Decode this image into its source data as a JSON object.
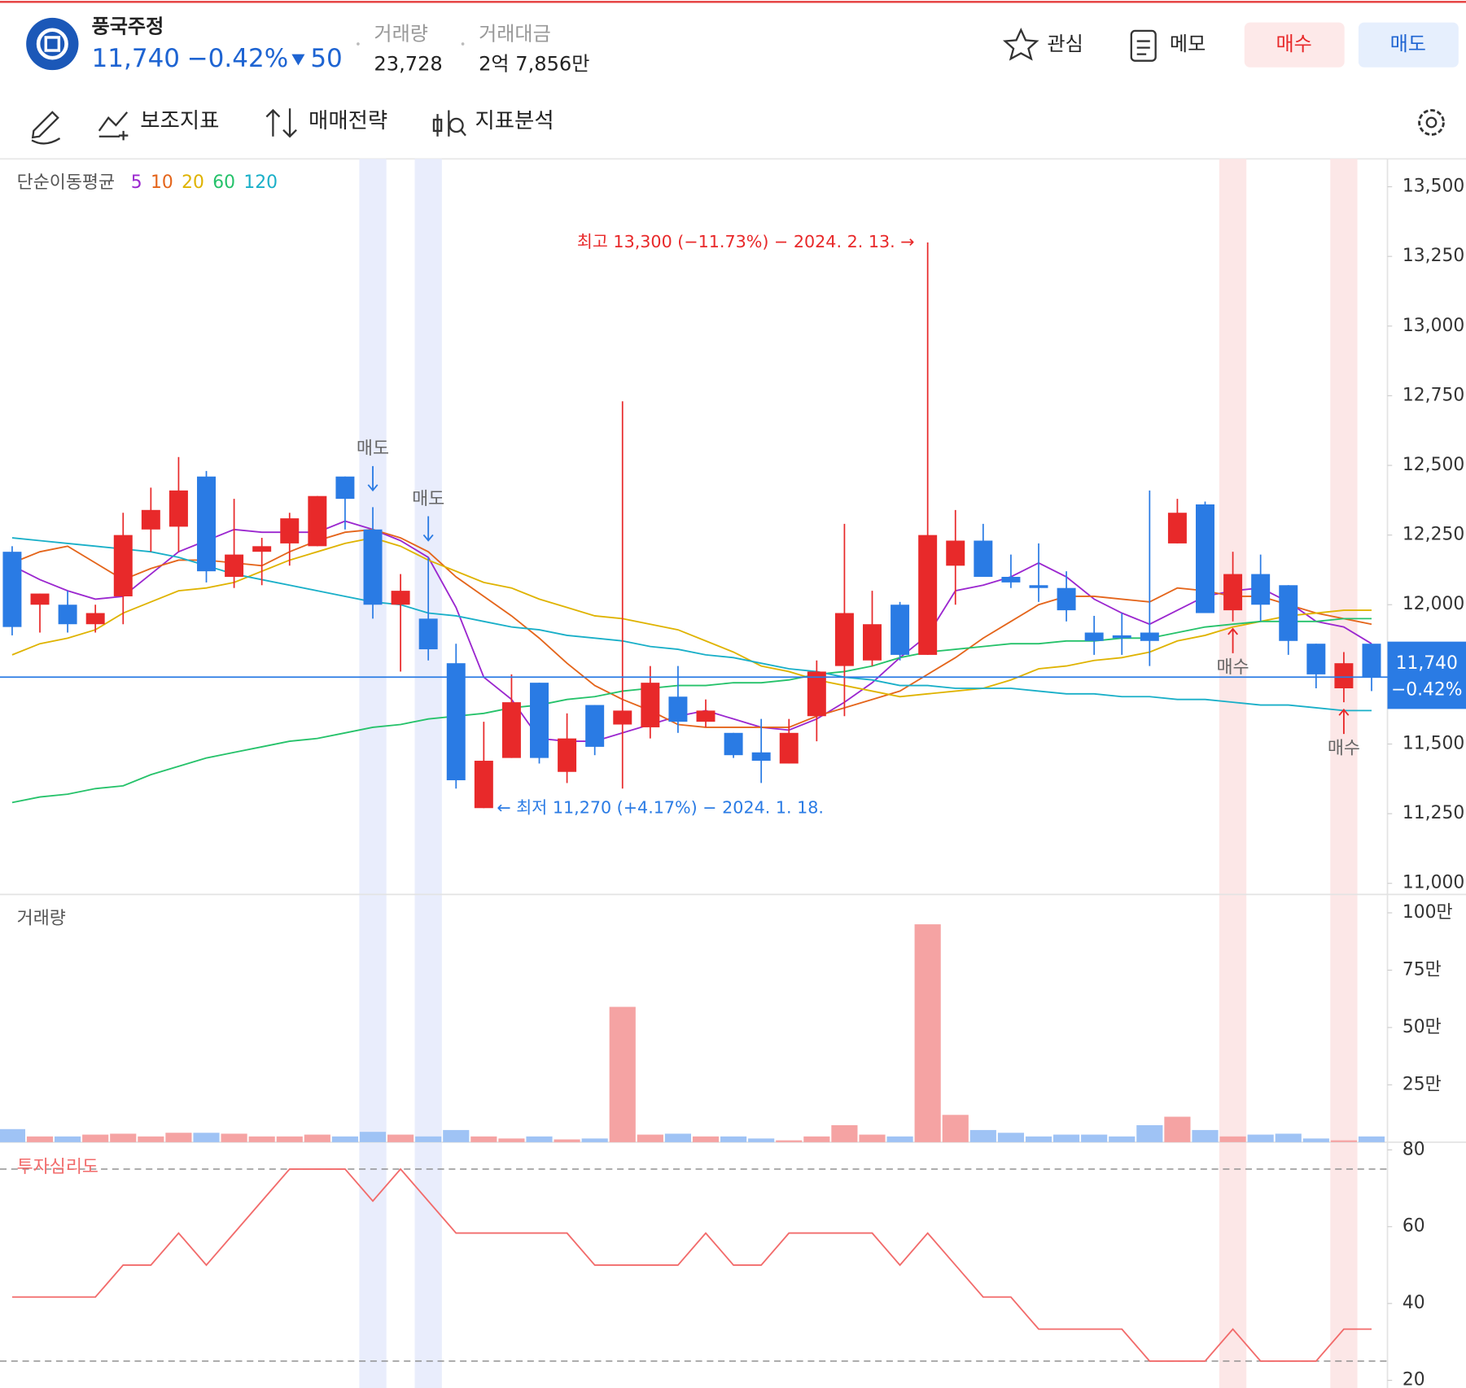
{
  "header": {
    "name": "풍국주정",
    "price": "11,740",
    "change_rate": "−0.42%",
    "change": "50",
    "volume_label": "거래량",
    "volume": "23,728",
    "amount_label": "거래대금",
    "amount": "2억 7,856만",
    "buttons": [
      "관심",
      "메모",
      "매수",
      "매도"
    ]
  },
  "toolbar": [
    "보조지표",
    "매매전략",
    "지표분석"
  ],
  "chart_data": [
    {
      "type": "candlestick",
      "title": "단순이동평균",
      "open": [
        12190,
        12000,
        12000,
        11930,
        12030,
        12270,
        12280,
        12460,
        12100,
        12190,
        12220,
        12210,
        12460,
        12270,
        12000,
        11950,
        11790,
        11270,
        11450,
        11720,
        11400,
        11640,
        11570,
        11560,
        11670,
        11580,
        11540,
        11470,
        11430,
        11600,
        11780,
        11800,
        12000,
        11820,
        12140,
        12230,
        12100,
        12070,
        12060,
        11900,
        11890,
        11900,
        12220,
        12360,
        11980,
        12110,
        12070,
        11860,
        11700,
        11860
      ],
      "high": [
        12210,
        12040,
        12050,
        12000,
        12330,
        12420,
        12530,
        12480,
        12380,
        12240,
        12330,
        12390,
        12460,
        12350,
        12110,
        12170,
        11860,
        11580,
        11750,
        11720,
        11610,
        11640,
        12730,
        11780,
        11780,
        11660,
        11540,
        11590,
        11590,
        11800,
        12290,
        12050,
        12010,
        13300,
        12340,
        12290,
        12180,
        12220,
        12120,
        11960,
        11970,
        12410,
        12380,
        12370,
        12190,
        12180,
        12070,
        11860,
        11830,
        11860
      ],
      "low": [
        11890,
        11900,
        11900,
        11900,
        11930,
        12190,
        12190,
        12080,
        12060,
        12070,
        12140,
        12210,
        12270,
        11950,
        11760,
        11800,
        11340,
        11270,
        11450,
        11430,
        11360,
        11460,
        11340,
        11520,
        11540,
        11560,
        11450,
        11360,
        11430,
        11510,
        11600,
        11780,
        11800,
        11820,
        12000,
        12100,
        12060,
        12010,
        11940,
        11820,
        11820,
        11780,
        12220,
        11970,
        11940,
        11940,
        11820,
        11700,
        11650,
        11690
      ],
      "close": [
        11920,
        12040,
        11930,
        11970,
        12250,
        12340,
        12410,
        12120,
        12180,
        12210,
        12310,
        12390,
        12380,
        12000,
        12050,
        11840,
        11370,
        11440,
        11650,
        11450,
        11520,
        11490,
        11620,
        11720,
        11580,
        11620,
        11460,
        11440,
        11540,
        11760,
        11970,
        11930,
        11820,
        12250,
        12230,
        12100,
        12080,
        12060,
        11980,
        11870,
        11880,
        11870,
        12330,
        11970,
        12110,
        12000,
        11870,
        11750,
        11790,
        11740
      ],
      "up_color": "#e8292a",
      "down_color": "#2a7be4",
      "series": [
        {
          "name": "5",
          "color": "#9b27cf",
          "values": [
            12140,
            12090,
            12050,
            12020,
            12030,
            12110,
            12190,
            12230,
            12270,
            12260,
            12260,
            12260,
            12300,
            12270,
            12230,
            12170,
            11990,
            11740,
            11660,
            11520,
            11510,
            11510,
            11540,
            11570,
            11600,
            11620,
            11590,
            11560,
            11550,
            11590,
            11650,
            11720,
            11810,
            11890,
            12050,
            12070,
            12100,
            12150,
            12100,
            12020,
            11970,
            11930,
            11980,
            12030,
            12050,
            12060,
            12010,
            11940,
            11920,
            11860
          ]
        },
        {
          "name": "10",
          "color": "#e4651b",
          "values": [
            12150,
            12190,
            12210,
            12150,
            12090,
            12130,
            12160,
            12160,
            12150,
            12140,
            12190,
            12230,
            12260,
            12270,
            12240,
            12190,
            12100,
            12030,
            11960,
            11880,
            11790,
            11710,
            11660,
            11620,
            11570,
            11560,
            11560,
            11560,
            11560,
            11600,
            11630,
            11660,
            11690,
            11750,
            11810,
            11880,
            11940,
            12000,
            12030,
            12030,
            12020,
            12010,
            12060,
            12050,
            12030,
            12030,
            12000,
            11970,
            11950,
            11930
          ]
        },
        {
          "name": "20",
          "color": "#dfb300",
          "values": [
            11820,
            11860,
            11880,
            11910,
            11970,
            12010,
            12050,
            12060,
            12080,
            12120,
            12160,
            12190,
            12220,
            12240,
            12210,
            12160,
            12120,
            12080,
            12060,
            12020,
            11990,
            11960,
            11950,
            11930,
            11910,
            11870,
            11830,
            11780,
            11760,
            11730,
            11710,
            11690,
            11670,
            11680,
            11690,
            11700,
            11730,
            11770,
            11780,
            11800,
            11810,
            11830,
            11870,
            11890,
            11920,
            11940,
            11960,
            11970,
            11980,
            11980
          ]
        },
        {
          "name": "60",
          "color": "#25c26a",
          "values": [
            11290,
            11310,
            11320,
            11340,
            11350,
            11390,
            11420,
            11450,
            11470,
            11490,
            11510,
            11520,
            11540,
            11560,
            11570,
            11590,
            11600,
            11610,
            11630,
            11640,
            11660,
            11670,
            11690,
            11700,
            11710,
            11710,
            11720,
            11720,
            11730,
            11750,
            11760,
            11780,
            11810,
            11830,
            11840,
            11850,
            11860,
            11860,
            11870,
            11870,
            11880,
            11880,
            11900,
            11920,
            11930,
            11940,
            11940,
            11940,
            11950,
            11950
          ]
        },
        {
          "name": "120",
          "color": "#19afc8",
          "values": [
            12240,
            12230,
            12220,
            12210,
            12200,
            12190,
            12170,
            12140,
            12110,
            12090,
            12070,
            12050,
            12030,
            12010,
            12000,
            11970,
            11960,
            11940,
            11920,
            11910,
            11890,
            11880,
            11870,
            11850,
            11840,
            11820,
            11810,
            11790,
            11770,
            11760,
            11740,
            11730,
            11710,
            11710,
            11700,
            11700,
            11700,
            11690,
            11680,
            11680,
            11670,
            11670,
            11660,
            11660,
            11650,
            11640,
            11640,
            11630,
            11620,
            11620
          ]
        }
      ],
      "signals": [
        null,
        null,
        null,
        null,
        null,
        null,
        null,
        null,
        null,
        null,
        null,
        null,
        null,
        {
          "label": "매도",
          "side": "sell"
        },
        null,
        {
          "label": "매도",
          "side": "sell"
        },
        null,
        null,
        null,
        null,
        null,
        null,
        null,
        null,
        null,
        null,
        null,
        null,
        null,
        null,
        null,
        null,
        null,
        null,
        null,
        null,
        null,
        null,
        null,
        null,
        null,
        null,
        null,
        null,
        {
          "label": "매수",
          "side": "buy"
        },
        null,
        null,
        null,
        {
          "label": "매수",
          "side": "buy"
        },
        null
      ],
      "annotations": [
        {
          "text": "최고 13,300 (−11.73%) − 2024. 2. 13. →",
          "at": "high",
          "color": "#e8292a"
        },
        {
          "text": "← 최저 11,270 (+4.17%) − 2024. 1. 18.",
          "at": "low",
          "color": "#2a7be4"
        }
      ],
      "last_labels": [
        "11,740",
        "−0.42%"
      ],
      "ylim": [
        10960,
        13600
      ],
      "yticks": [
        {
          "value": 11000,
          "label": "11,000"
        },
        {
          "value": 11250,
          "label": "11,250"
        },
        {
          "value": 11500,
          "label": "11,500"
        },
        {
          "value": 11750,
          "label": "11,750"
        },
        {
          "value": 12000,
          "label": "12,000"
        },
        {
          "value": 12250,
          "label": "12,250"
        },
        {
          "value": 12500,
          "label": "12,500"
        },
        {
          "value": 12750,
          "label": "12,750"
        },
        {
          "value": 13000,
          "label": "13,000"
        },
        {
          "value": 13250,
          "label": "13,250"
        },
        {
          "value": 13500,
          "label": "13,500"
        }
      ]
    },
    {
      "type": "bar",
      "title": "거래량",
      "up_color": "#f5a3a3",
      "down_color": "#9fc3f5",
      "values": [
        57000,
        25000,
        25000,
        33000,
        37000,
        25000,
        41000,
        41000,
        37000,
        25000,
        25000,
        33000,
        25000,
        45000,
        33000,
        25000,
        53000,
        25000,
        16000,
        25000,
        12000,
        16000,
        590000,
        33000,
        37000,
        25000,
        25000,
        16000,
        8000,
        25000,
        74000,
        33000,
        25000,
        950000,
        119000,
        53000,
        41000,
        25000,
        33000,
        33000,
        25000,
        74000,
        111000,
        53000,
        25000,
        33000,
        37000,
        16000,
        8000,
        25000
      ],
      "ylim": [
        0,
        1080000
      ],
      "yticks": [
        {
          "value": 250000,
          "label": "25만"
        },
        {
          "value": 500000,
          "label": "50만"
        },
        {
          "value": 750000,
          "label": "75만"
        },
        {
          "value": 1000000,
          "label": "100만"
        }
      ]
    },
    {
      "type": "line",
      "title": "투자심리도",
      "color": "#f26b6b",
      "values": [
        41.67,
        41.67,
        41.67,
        41.67,
        50,
        50,
        58.33,
        50,
        58.33,
        66.67,
        75,
        75,
        75,
        66.67,
        75,
        66.67,
        58.33,
        58.33,
        58.33,
        58.33,
        58.33,
        50,
        50,
        50,
        50,
        58.33,
        50,
        50,
        58.33,
        58.33,
        58.33,
        58.33,
        50,
        58.33,
        50,
        41.67,
        41.67,
        33.33,
        33.33,
        33.33,
        33.33,
        25,
        25,
        25,
        33.33,
        25,
        25,
        25,
        33.33,
        33.33
      ],
      "reference_lines": [
        75,
        25
      ],
      "ylim": [
        18,
        82
      ],
      "yticks": [
        20,
        40,
        60,
        80
      ]
    }
  ]
}
